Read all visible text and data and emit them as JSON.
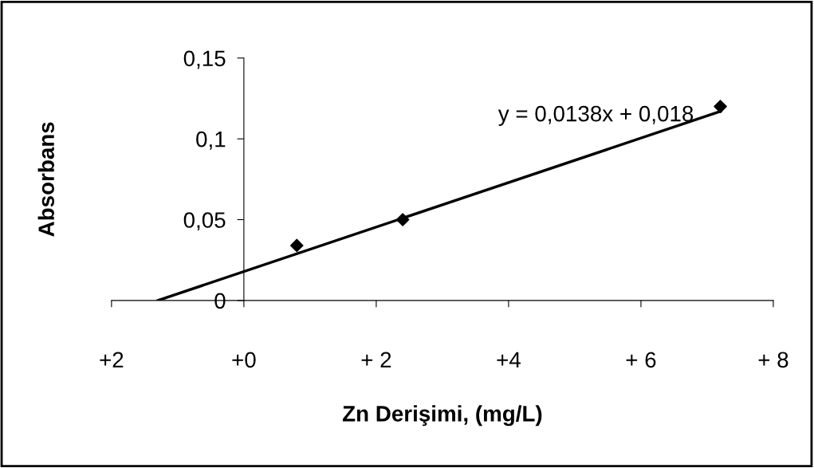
{
  "chart_data": {
    "type": "scatter",
    "xlabel": "Zn Derişimi, (mg/L)",
    "ylabel": "Absorbans",
    "series": [
      {
        "color": "#000000",
        "marker": "diamond",
        "x": [
          0.8,
          2.4,
          7.2
        ],
        "values": [
          0.034,
          0.05,
          0.12
        ]
      },
      {
        "type": "line",
        "color": "#000000",
        "marker": "none",
        "line_style": "solid",
        "x": [
          -1.3,
          7.2
        ],
        "values": [
          0.0,
          0.117
        ]
      }
    ],
    "xlim": [
      -2,
      8
    ],
    "ylim": [
      0,
      0.15
    ],
    "xticks": [
      {
        "value": -2,
        "label": "+2"
      },
      {
        "value": 0,
        "label": "+0"
      },
      {
        "value": 2,
        "label": "+ 2"
      },
      {
        "value": 4,
        "label": "+4"
      },
      {
        "value": 6,
        "label": "+ 6"
      },
      {
        "value": 8,
        "label": "+ 8"
      }
    ],
    "yticks": [
      0,
      {
        "value": 0.05,
        "label": "0,05"
      },
      {
        "value": 0.1,
        "label": "0,1"
      },
      {
        "value": 0.15,
        "label": "0,15"
      }
    ],
    "annotations": [
      "y = 0,0138x + 0,018"
    ],
    "grid": false,
    "legend": false
  }
}
